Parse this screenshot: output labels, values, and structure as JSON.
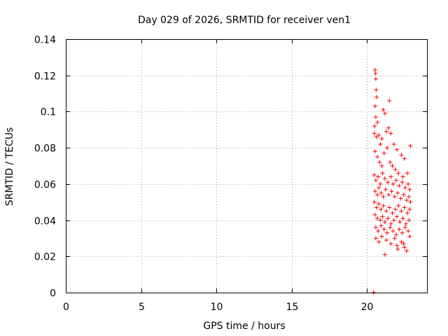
{
  "chart_data": {
    "type": "scatter",
    "title": "Day 029 of 2026, SRMTID for receiver ven1",
    "xlabel": "GPS time / hours",
    "ylabel": "SRMTID / TECUs",
    "xlim": [
      0,
      24
    ],
    "ylim": [
      0,
      0.14
    ],
    "xticks": [
      0,
      5,
      10,
      15,
      20
    ],
    "xtick_labels": [
      "0",
      "5",
      "10",
      "15",
      "20"
    ],
    "yticks": [
      0,
      0.02,
      0.04,
      0.06,
      0.08,
      0.1,
      0.12,
      0.14
    ],
    "ytick_labels": [
      "0",
      "0.02",
      "0.04",
      "0.06",
      "0.08",
      "0.1",
      "0.12",
      "0.14"
    ],
    "grid": true,
    "marker": "+",
    "color": "#ff0000",
    "series": [
      {
        "name": "SRMTID",
        "points": [
          [
            20.45,
            0.0
          ],
          [
            20.45,
            0.0
          ],
          [
            20.55,
            0.123
          ],
          [
            20.58,
            0.121
          ],
          [
            20.6,
            0.118
          ],
          [
            20.62,
            0.112
          ],
          [
            20.65,
            0.108
          ],
          [
            20.55,
            0.103
          ],
          [
            20.6,
            0.097
          ],
          [
            20.52,
            0.092
          ],
          [
            20.7,
            0.094
          ],
          [
            21.1,
            0.101
          ],
          [
            21.2,
            0.099
          ],
          [
            21.5,
            0.106
          ],
          [
            20.5,
            0.088
          ],
          [
            20.65,
            0.086
          ],
          [
            20.8,
            0.087
          ],
          [
            20.9,
            0.082
          ],
          [
            21.0,
            0.085
          ],
          [
            21.3,
            0.089
          ],
          [
            21.45,
            0.091
          ],
          [
            21.6,
            0.088
          ],
          [
            21.8,
            0.082
          ],
          [
            22.0,
            0.079
          ],
          [
            22.3,
            0.076
          ],
          [
            22.5,
            0.074
          ],
          [
            22.9,
            0.081
          ],
          [
            20.55,
            0.078
          ],
          [
            20.7,
            0.075
          ],
          [
            20.85,
            0.072
          ],
          [
            21.0,
            0.07
          ],
          [
            21.15,
            0.077
          ],
          [
            21.35,
            0.08
          ],
          [
            21.55,
            0.072
          ],
          [
            21.7,
            0.07
          ],
          [
            21.9,
            0.068
          ],
          [
            22.1,
            0.066
          ],
          [
            22.4,
            0.064
          ],
          [
            22.7,
            0.066
          ],
          [
            20.5,
            0.065
          ],
          [
            20.6,
            0.062
          ],
          [
            20.75,
            0.064
          ],
          [
            20.9,
            0.06
          ],
          [
            21.05,
            0.066
          ],
          [
            21.2,
            0.063
          ],
          [
            21.4,
            0.061
          ],
          [
            21.6,
            0.064
          ],
          [
            21.75,
            0.06
          ],
          [
            21.95,
            0.062
          ],
          [
            22.15,
            0.059
          ],
          [
            22.35,
            0.061
          ],
          [
            22.55,
            0.058
          ],
          [
            22.75,
            0.06
          ],
          [
            22.85,
            0.057
          ],
          [
            20.55,
            0.056
          ],
          [
            20.7,
            0.054
          ],
          [
            20.8,
            0.058
          ],
          [
            20.95,
            0.055
          ],
          [
            21.1,
            0.053
          ],
          [
            21.25,
            0.057
          ],
          [
            21.45,
            0.054
          ],
          [
            21.65,
            0.056
          ],
          [
            21.85,
            0.053
          ],
          [
            22.05,
            0.055
          ],
          [
            22.25,
            0.052
          ],
          [
            22.45,
            0.054
          ],
          [
            22.65,
            0.051
          ],
          [
            22.8,
            0.053
          ],
          [
            22.9,
            0.05
          ],
          [
            20.5,
            0.05
          ],
          [
            20.65,
            0.047
          ],
          [
            20.8,
            0.049
          ],
          [
            20.95,
            0.046
          ],
          [
            21.1,
            0.048
          ],
          [
            21.3,
            0.045
          ],
          [
            21.5,
            0.047
          ],
          [
            21.7,
            0.044
          ],
          [
            21.9,
            0.046
          ],
          [
            22.1,
            0.048
          ],
          [
            22.3,
            0.045
          ],
          [
            22.5,
            0.047
          ],
          [
            22.7,
            0.044
          ],
          [
            22.85,
            0.046
          ],
          [
            20.55,
            0.043
          ],
          [
            20.7,
            0.041
          ],
          [
            20.9,
            0.04
          ],
          [
            21.05,
            0.042
          ],
          [
            21.2,
            0.039
          ],
          [
            21.4,
            0.041
          ],
          [
            21.6,
            0.038
          ],
          [
            21.8,
            0.04
          ],
          [
            22.0,
            0.042
          ],
          [
            22.2,
            0.039
          ],
          [
            22.4,
            0.041
          ],
          [
            22.6,
            0.038
          ],
          [
            22.8,
            0.04
          ],
          [
            20.6,
            0.036
          ],
          [
            20.75,
            0.034
          ],
          [
            20.95,
            0.037
          ],
          [
            21.15,
            0.035
          ],
          [
            21.35,
            0.033
          ],
          [
            21.55,
            0.036
          ],
          [
            21.75,
            0.034
          ],
          [
            21.95,
            0.032
          ],
          [
            22.15,
            0.035
          ],
          [
            22.35,
            0.033
          ],
          [
            22.55,
            0.036
          ],
          [
            22.75,
            0.034
          ],
          [
            20.6,
            0.03
          ],
          [
            20.8,
            0.028
          ],
          [
            21.0,
            0.031
          ],
          [
            21.3,
            0.029
          ],
          [
            21.6,
            0.027
          ],
          [
            21.85,
            0.03
          ],
          [
            22.05,
            0.024
          ],
          [
            22.3,
            0.028
          ],
          [
            22.5,
            0.025
          ],
          [
            22.65,
            0.023
          ],
          [
            22.85,
            0.031
          ],
          [
            21.2,
            0.021
          ],
          [
            22.0,
            0.026
          ],
          [
            22.45,
            0.027
          ]
        ]
      }
    ]
  }
}
